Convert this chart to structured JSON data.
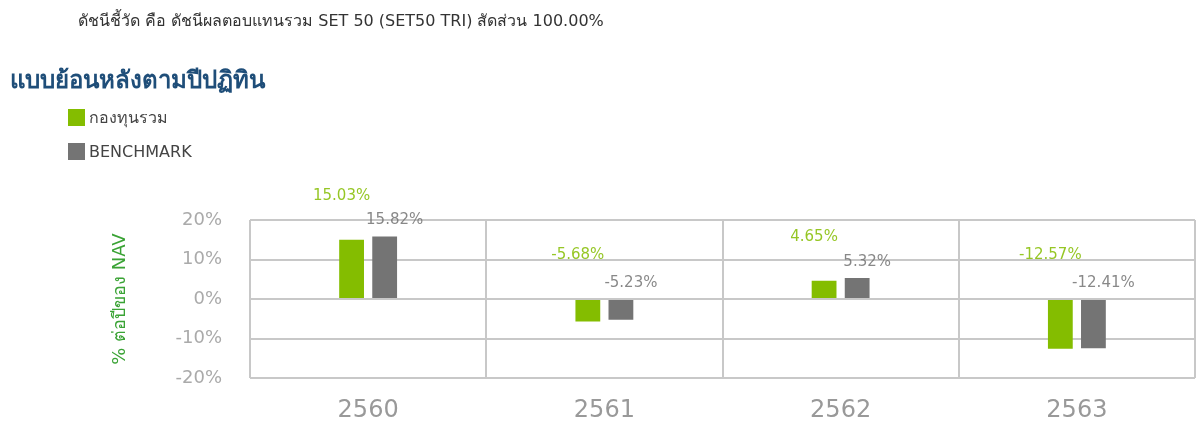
{
  "chart_data": {
    "type": "bar",
    "title": "แบบย้อนหลังตามปีปฏิทิน",
    "annotations": [
      "ดัชนีชี้วัด คือ ดัชนีผลตอบแทนรวม SET 50 (SET50 TRI) สัดส่วน 100.00%"
    ],
    "ylabel": "% ต่อปีของ NAV",
    "categories": [
      "2560",
      "2561",
      "2562",
      "2563"
    ],
    "series": [
      {
        "name": "กองทุนรวม",
        "color": "#84bd00",
        "values": [
          15.03,
          -5.68,
          4.65,
          -12.57
        ],
        "value_labels": [
          "15.03%",
          "-5.68%",
          "4.65%",
          "-12.57%"
        ]
      },
      {
        "name": "BENCHMARK",
        "color": "#747474",
        "values": [
          15.82,
          -5.23,
          5.32,
          -12.41
        ],
        "value_labels": [
          "15.82%",
          "-5.23%",
          "5.32%",
          "-12.41%"
        ]
      }
    ],
    "ylim": [
      -20,
      20
    ],
    "yticks": [
      {
        "value": -20,
        "label": "-20%"
      },
      {
        "value": -10,
        "label": "-10%"
      },
      {
        "value": 0,
        "label": "0%"
      },
      {
        "value": 10,
        "label": "10%"
      },
      {
        "value": 20,
        "label": "20%"
      }
    ],
    "grid": true,
    "legend": "top left"
  }
}
